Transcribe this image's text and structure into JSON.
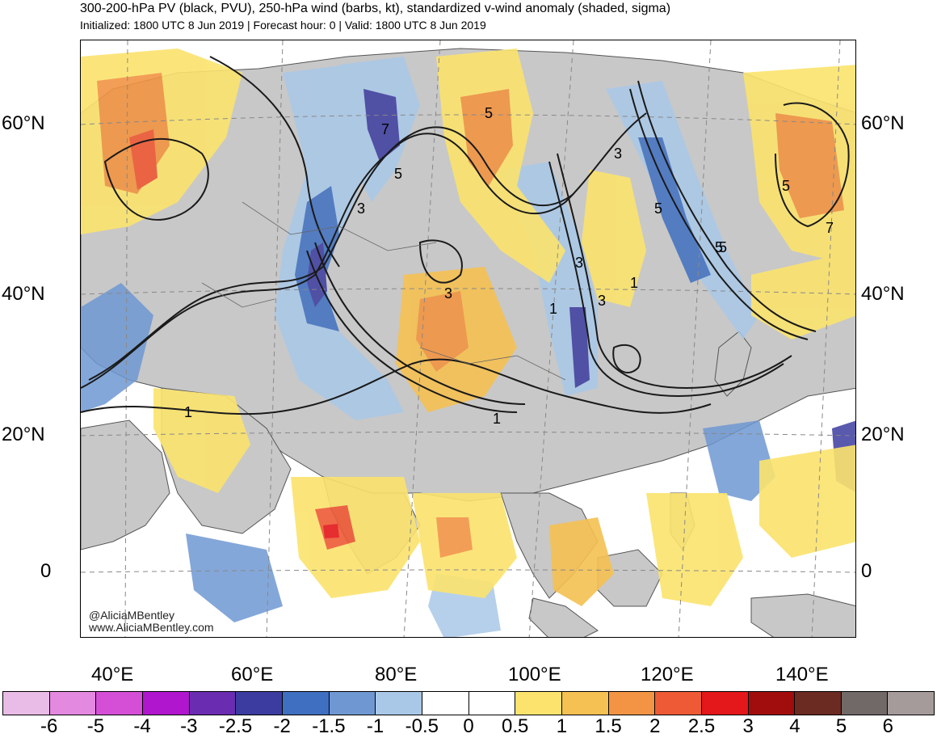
{
  "header": {
    "title": "300-200-hPa PV (black, PVU), 250-hPa wind (barbs, kt), standardized v-wind anomaly (shaded, sigma)",
    "subtitle": "Initialized: 1800 UTC 8 Jun 2019 | Forecast hour: 0 | Valid: 1800 UTC 8 Jun 2019"
  },
  "map": {
    "lat_labels": [
      "60°N",
      "40°N",
      "20°N",
      "0"
    ],
    "lon_labels": [
      "40°E",
      "60°E",
      "80°E",
      "100°E",
      "120°E",
      "140°E"
    ],
    "pv_contour_labels": [
      "5",
      "7",
      "5",
      "3",
      "5",
      "3",
      "5",
      "3",
      "1",
      "3",
      "3",
      "1",
      "1",
      "1",
      "5",
      "7",
      "5"
    ],
    "credit_line1": "@AliciaMBentley",
    "credit_line2": "www.AliciaMBentley.com",
    "colors": {
      "land": "#c8c8c8",
      "contour": "#1a1a1a",
      "coast": "#555555"
    }
  },
  "colorbar": {
    "labels": [
      "-6",
      "-5",
      "-4",
      "-3",
      "-2.5",
      "-2",
      "-1.5",
      "-1",
      "-0.5",
      "0",
      "0.5",
      "1",
      "1.5",
      "2",
      "2.5",
      "3",
      "4",
      "5",
      "6"
    ],
    "colors": [
      "#e8bce6",
      "#e489e0",
      "#d54fd6",
      "#b116cf",
      "#6a2cb0",
      "#3c3ca0",
      "#3f6fc0",
      "#6f98d2",
      "#a9c8e8",
      "#ffffff",
      "#ffffff",
      "#fbe36d",
      "#f5c152",
      "#f29444",
      "#ee5a36",
      "#e4171a",
      "#a10d0d",
      "#6b2a22",
      "#716968",
      "#a59b9a"
    ]
  }
}
